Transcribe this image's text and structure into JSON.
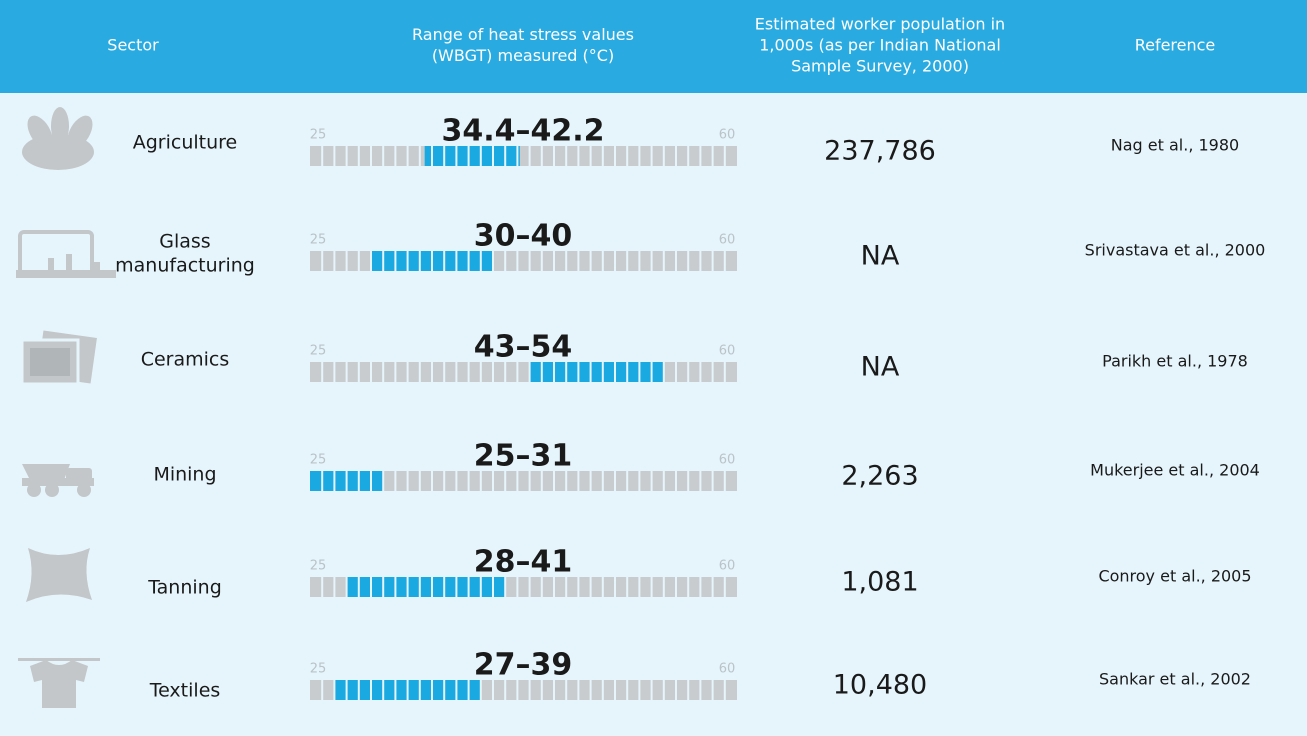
{
  "header": {
    "sector": "Sector",
    "range": [
      "Range of heat stress values",
      "(WBGT) measured (°C)"
    ],
    "population": [
      "Estimated worker population in",
      "1,000s (as per Indian National",
      "Sample Survey, 2000)"
    ],
    "reference": "Reference"
  },
  "scale": {
    "min": 25,
    "max": 60
  },
  "rows": [
    {
      "sector": [
        "Agriculture"
      ],
      "range": {
        "label": "34.4–42.2",
        "low": 34.4,
        "high": 42.2
      },
      "population": "237,786",
      "reference": "Nag et al., 1980"
    },
    {
      "sector": [
        "Glass",
        "manufacturing"
      ],
      "range": {
        "label": "30–40",
        "low": 30,
        "high": 40
      },
      "population": "NA",
      "reference": "Srivastava et al., 2000"
    },
    {
      "sector": [
        "Ceramics"
      ],
      "range": {
        "label": "43–54",
        "low": 43,
        "high": 54
      },
      "population": "NA",
      "reference": "Parikh et al., 1978"
    },
    {
      "sector": [
        "Mining"
      ],
      "range": {
        "label": "25–31",
        "low": 25,
        "high": 31
      },
      "population": "2,263",
      "reference": "Mukerjee et al., 2004"
    },
    {
      "sector": [
        "Tanning"
      ],
      "range": {
        "label": "28–41",
        "low": 28,
        "high": 41
      },
      "population": "1,081",
      "reference": "Conroy et al., 2005"
    },
    {
      "sector": [
        "Textiles"
      ],
      "range": {
        "label": "27–39",
        "low": 27,
        "high": 39
      },
      "population": "10,480",
      "reference": "Sankar et al., 2002"
    }
  ]
}
